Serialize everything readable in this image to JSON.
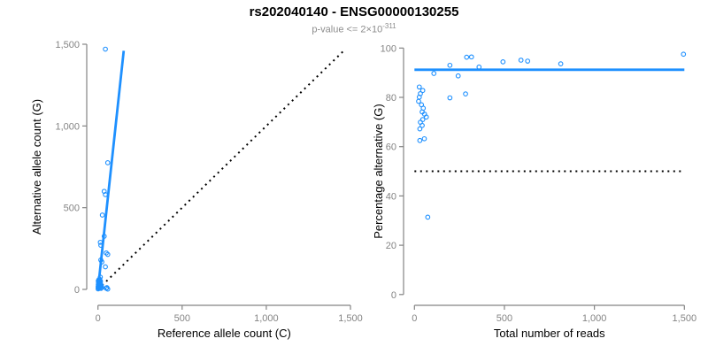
{
  "header": {
    "title": "rs202040140 - ENSG00000130255",
    "subtitle": {
      "prefix": "p-value <= 2",
      "times": "×",
      "base": "10",
      "exponent": "-311"
    }
  },
  "colors": {
    "accent_blue": "#1E90FF",
    "axis_gray": "#848484",
    "tick_label_gray": "#848484",
    "dotted_black": "#000000"
  },
  "chart_data": [
    {
      "type": "scatter",
      "xlabel": "Reference allele count (C)",
      "ylabel": "Alternative allele count (G)",
      "xlim": [
        0,
        1500
      ],
      "ylim": [
        0,
        1500
      ],
      "xticks": [
        0,
        500,
        1000,
        1500
      ],
      "xtick_labels": [
        "0",
        "500",
        "1,000",
        "1,500"
      ],
      "yticks": [
        0,
        500,
        1000,
        1500
      ],
      "ytick_labels": [
        "0",
        "500",
        "1,000",
        "1,500"
      ],
      "grid": false,
      "legend": null,
      "lines": [
        {
          "name": "fit-line",
          "x1": 0,
          "y1": 0,
          "x2": 153,
          "y2": 1460,
          "style": "solid",
          "color": "#1E90FF"
        },
        {
          "name": "identity-line",
          "x1": 0,
          "y1": 0,
          "x2": 1455,
          "y2": 1455,
          "style": "dotted",
          "color": "#000000"
        }
      ],
      "points": [
        [
          44,
          1470
        ],
        [
          58,
          775
        ],
        [
          37,
          600
        ],
        [
          44,
          580
        ],
        [
          26,
          455
        ],
        [
          37,
          325
        ],
        [
          14,
          288
        ],
        [
          17,
          270
        ],
        [
          49,
          223
        ],
        [
          58,
          214
        ],
        [
          17,
          180
        ],
        [
          23,
          168
        ],
        [
          44,
          138
        ],
        [
          14,
          75
        ],
        [
          49,
          7
        ],
        [
          53,
          11
        ],
        [
          58,
          2
        ],
        [
          1,
          3
        ],
        [
          2,
          9
        ],
        [
          1,
          16
        ],
        [
          3,
          22
        ],
        [
          2,
          29
        ],
        [
          4,
          35
        ],
        [
          3,
          42
        ],
        [
          5,
          48
        ],
        [
          4,
          55
        ],
        [
          2,
          52
        ],
        [
          6,
          60
        ],
        [
          5,
          14
        ],
        [
          7,
          7
        ],
        [
          8,
          19
        ],
        [
          9,
          31
        ],
        [
          10,
          43
        ],
        [
          11,
          54
        ],
        [
          7,
          37
        ],
        [
          12,
          11
        ],
        [
          13,
          25
        ],
        [
          14,
          39
        ],
        [
          16,
          17
        ],
        [
          17,
          29
        ],
        [
          18,
          6
        ],
        [
          20,
          22
        ],
        [
          22,
          12
        ],
        [
          15,
          50
        ],
        [
          10,
          62
        ]
      ]
    },
    {
      "type": "scatter",
      "xlabel": "Total number of reads",
      "ylabel": "Percentage alternative (G)",
      "xlim": [
        0,
        1500
      ],
      "ylim": [
        0,
        100
      ],
      "xticks": [
        0,
        500,
        1000,
        1500
      ],
      "xtick_labels": [
        "0",
        "500",
        "1,000",
        "1,500"
      ],
      "yticks": [
        0,
        20,
        40,
        60,
        80,
        100
      ],
      "ytick_labels": [
        "0",
        "20",
        "40",
        "60",
        "80",
        "100"
      ],
      "grid": false,
      "legend": null,
      "lines": [
        {
          "name": "mean-percentage-line",
          "x1": 0,
          "y1": 91.2,
          "x2": 1500,
          "y2": 91.2,
          "style": "solid",
          "color": "#1E90FF"
        },
        {
          "name": "fifty-percent-line",
          "x1": 0,
          "y1": 50,
          "x2": 1500,
          "y2": 50,
          "style": "dotted",
          "color": "#000000"
        }
      ],
      "points": [
        [
          1495,
          97.5
        ],
        [
          317,
          96.4
        ],
        [
          290,
          96.3
        ],
        [
          592,
          95.1
        ],
        [
          629,
          94.7
        ],
        [
          492,
          94.4
        ],
        [
          813,
          93.6
        ],
        [
          197,
          93
        ],
        [
          359,
          92.3
        ],
        [
          108,
          89.7
        ],
        [
          243,
          88.7
        ],
        [
          284,
          81.4
        ],
        [
          197,
          79.8
        ],
        [
          27,
          84.2
        ],
        [
          46,
          82.8
        ],
        [
          33,
          81.5
        ],
        [
          27,
          80.1
        ],
        [
          23,
          78.4
        ],
        [
          39,
          77
        ],
        [
          49,
          75.6
        ],
        [
          43,
          74.1
        ],
        [
          56,
          73.2
        ],
        [
          66,
          72
        ],
        [
          46,
          71
        ],
        [
          33,
          69.9
        ],
        [
          43,
          68.6
        ],
        [
          30,
          67.2
        ],
        [
          30,
          62.5
        ],
        [
          55,
          63.2
        ],
        [
          74,
          31.4
        ]
      ]
    }
  ]
}
